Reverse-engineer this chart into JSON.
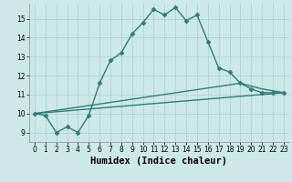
{
  "xlabel": "Humidex (Indice chaleur)",
  "xlim": [
    -0.5,
    23.5
  ],
  "ylim": [
    8.5,
    15.8
  ],
  "yticks": [
    9,
    10,
    11,
    12,
    13,
    14,
    15
  ],
  "xticks": [
    0,
    1,
    2,
    3,
    4,
    5,
    6,
    7,
    8,
    9,
    10,
    11,
    12,
    13,
    14,
    15,
    16,
    17,
    18,
    19,
    20,
    21,
    22,
    23
  ],
  "bg_color": "#cce9e8",
  "grid_color": "#aacccc",
  "line_color": "#2d7d74",
  "line1_x": [
    0,
    1,
    2,
    3,
    4,
    5,
    6,
    7,
    8,
    9,
    10,
    11,
    12,
    13,
    14,
    15,
    16,
    17,
    18,
    19,
    20,
    21,
    22,
    23
  ],
  "line1_y": [
    10.0,
    9.9,
    9.0,
    9.3,
    9.0,
    9.9,
    11.6,
    12.8,
    13.2,
    14.2,
    14.8,
    15.5,
    15.2,
    15.6,
    14.9,
    15.2,
    13.8,
    12.4,
    12.2,
    11.6,
    11.3,
    11.1,
    11.1,
    11.1
  ],
  "line2_x": [
    0,
    23
  ],
  "line2_y": [
    10.0,
    11.1
  ],
  "line3_x": [
    0,
    19,
    21,
    23
  ],
  "line3_y": [
    10.0,
    11.6,
    11.3,
    11.1
  ],
  "marker": "D",
  "markersize": 2.5,
  "linewidth": 1.0,
  "tick_fontsize": 5.5,
  "xlabel_fontsize": 7.5
}
